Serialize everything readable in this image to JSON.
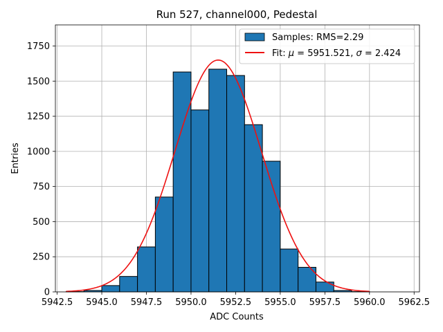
{
  "chart_data": {
    "type": "histogram",
    "title": "Run 527, channel000, Pedestal",
    "xlabel": "ADC Counts",
    "ylabel": "Entries",
    "xlim": [
      5942.4,
      5962.8
    ],
    "ylim": [
      0,
      1900
    ],
    "grid": true,
    "legend_position": "top-right",
    "x_ticks": [
      5942.5,
      5945.0,
      5947.5,
      5950.0,
      5952.5,
      5955.0,
      5957.5,
      5960.0,
      5962.5
    ],
    "x_tick_labels": [
      "5942.5",
      "5945.0",
      "5947.5",
      "5950.0",
      "5952.5",
      "5955.0",
      "5957.5",
      "5960.0",
      "5962.5"
    ],
    "y_ticks": [
      0,
      250,
      500,
      750,
      1000,
      1250,
      1500,
      1750
    ],
    "y_tick_labels": [
      "0",
      "250",
      "500",
      "750",
      "1000",
      "1250",
      "1500",
      "1750"
    ],
    "bins": [
      {
        "left": 5943,
        "right": 5944,
        "count": 2
      },
      {
        "left": 5944,
        "right": 5945,
        "count": 10
      },
      {
        "left": 5945,
        "right": 5946,
        "count": 45
      },
      {
        "left": 5946,
        "right": 5947,
        "count": 110
      },
      {
        "left": 5947,
        "right": 5948,
        "count": 320
      },
      {
        "left": 5948,
        "right": 5949,
        "count": 675
      },
      {
        "left": 5949,
        "right": 5950,
        "count": 1565
      },
      {
        "left": 5950,
        "right": 5951,
        "count": 1295
      },
      {
        "left": 5951,
        "right": 5952,
        "count": 1585
      },
      {
        "left": 5952,
        "right": 5953,
        "count": 1540
      },
      {
        "left": 5953,
        "right": 5954,
        "count": 1190
      },
      {
        "left": 5954,
        "right": 5955,
        "count": 930
      },
      {
        "left": 5955,
        "right": 5956,
        "count": 305
      },
      {
        "left": 5956,
        "right": 5957,
        "count": 175
      },
      {
        "left": 5957,
        "right": 5958,
        "count": 70
      },
      {
        "left": 5958,
        "right": 5959,
        "count": 10
      },
      {
        "left": 5959,
        "right": 5960,
        "count": 2
      },
      {
        "left": 5960,
        "right": 5961,
        "count": 0
      },
      {
        "left": 5961,
        "right": 5962,
        "count": 0
      }
    ],
    "fit": {
      "mu": 5951.521,
      "sigma": 2.424,
      "amplitude": 1650,
      "x_range": [
        5943,
        5960
      ]
    },
    "series": [
      {
        "name": "Samples: RMS=2.29",
        "kind": "bars",
        "color": "#1f77b4",
        "edge": "#000000"
      },
      {
        "name_prefix": "Fit: ",
        "name_mu": "μ",
        "name_mid": " = 5951.521, ",
        "name_sigma": "σ",
        "name_suffix": " = 2.424",
        "kind": "line",
        "color": "#ee1111"
      }
    ]
  }
}
